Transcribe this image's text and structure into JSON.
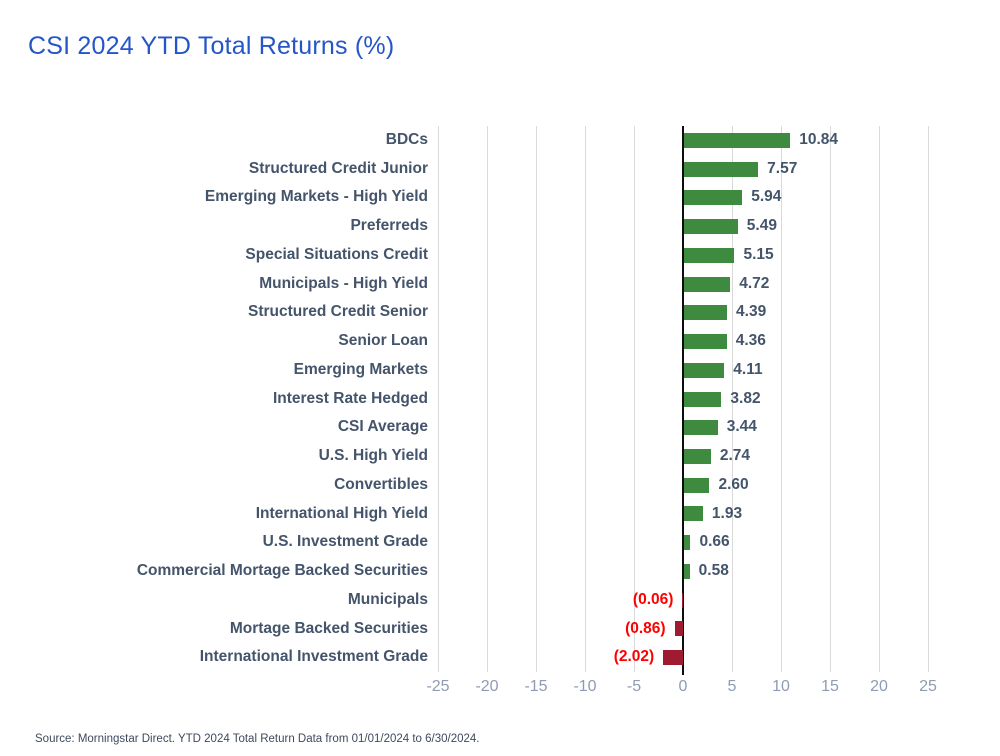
{
  "title": "CSI 2024 YTD Total Returns (%)",
  "source_note": "Source: Morningstar Direct. YTD 2024 Total Return Data from 01/01/2024 to 6/30/2024.",
  "chart_data": {
    "type": "bar",
    "orientation": "horizontal",
    "title": "CSI 2024 YTD Total Returns (%)",
    "categories": [
      "BDCs",
      "Structured Credit Junior",
      "Emerging Markets - High Yield",
      "Preferreds",
      "Special Situations Credit",
      "Municipals - High Yield",
      "Structured Credit Senior",
      "Senior Loan",
      "Emerging Markets",
      "Interest Rate Hedged",
      "CSI Average",
      "U.S. High Yield",
      "Convertibles",
      "International High Yield",
      "U.S. Investment Grade",
      "Commercial Mortage Backed Securities",
      "Municipals",
      "Mortage Backed Securities",
      "International Investment Grade"
    ],
    "values": [
      10.84,
      7.57,
      5.94,
      5.49,
      5.15,
      4.72,
      4.39,
      4.36,
      4.11,
      3.82,
      3.44,
      2.74,
      2.6,
      1.93,
      0.66,
      0.58,
      -0.06,
      -0.86,
      -2.02
    ],
    "value_labels": [
      "10.84",
      "7.57",
      "5.94",
      "5.49",
      "5.15",
      "4.72",
      "4.39",
      "4.36",
      "4.11",
      "3.82",
      "3.44",
      "2.74",
      "2.60",
      "1.93",
      "0.66",
      "0.58",
      "(0.06)",
      "(0.86)",
      "(2.02)"
    ],
    "xlim": [
      -25,
      25
    ],
    "xticks": [
      -25,
      -20,
      -15,
      -10,
      -5,
      0,
      5,
      10,
      15,
      20,
      25
    ],
    "grid": true,
    "legend": false,
    "colors": {
      "positive_bar": "#3E8A3E",
      "negative_bar": "#9E1B32",
      "positive_value_label": "#44546A",
      "negative_value_label": "#FF0000",
      "category_label": "#44546A",
      "tick_label": "#8E9BB3",
      "gridline": "#D9D9D9",
      "zero_line": "#0d0d0d",
      "title": "#2456C8"
    }
  }
}
